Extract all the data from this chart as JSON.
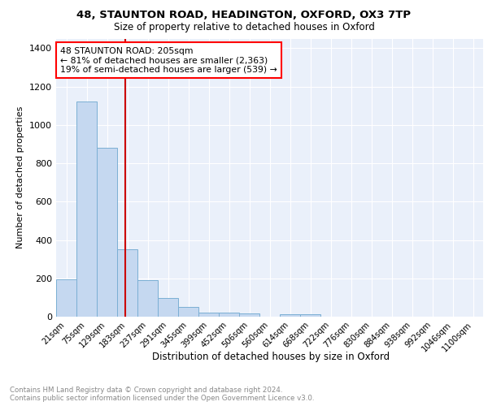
{
  "title_line1": "48, STAUNTON ROAD, HEADINGTON, OXFORD, OX3 7TP",
  "title_line2": "Size of property relative to detached houses in Oxford",
  "xlabel": "Distribution of detached houses by size in Oxford",
  "ylabel": "Number of detached properties",
  "bar_labels": [
    "21sqm",
    "75sqm",
    "129sqm",
    "183sqm",
    "237sqm",
    "291sqm",
    "345sqm",
    "399sqm",
    "452sqm",
    "506sqm",
    "560sqm",
    "614sqm",
    "668sqm",
    "722sqm",
    "776sqm",
    "830sqm",
    "884sqm",
    "938sqm",
    "992sqm",
    "1046sqm",
    "1100sqm"
  ],
  "bar_heights": [
    196,
    1120,
    880,
    350,
    192,
    96,
    50,
    22,
    20,
    15,
    0,
    12,
    12,
    0,
    0,
    0,
    0,
    0,
    0,
    0,
    0
  ],
  "bar_color": "#c5d8f0",
  "bar_edge_color": "#7bafd4",
  "property_line_x": 205,
  "bin_edges": [
    21,
    75,
    129,
    183,
    237,
    291,
    345,
    399,
    452,
    506,
    560,
    614,
    668,
    722,
    776,
    830,
    884,
    938,
    992,
    1046,
    1100
  ],
  "ylim": [
    0,
    1450
  ],
  "annotation_text": "48 STAUNTON ROAD: 205sqm\n← 81% of detached houses are smaller (2,363)\n19% of semi-detached houses are larger (539) →",
  "annotation_box_color": "white",
  "annotation_box_edge_color": "red",
  "red_line_color": "#cc0000",
  "footnote": "Contains HM Land Registry data © Crown copyright and database right 2024.\nContains public sector information licensed under the Open Government Licence v3.0.",
  "background_color": "#eaf0fa",
  "grid_color": "#ffffff",
  "yticks": [
    0,
    200,
    400,
    600,
    800,
    1000,
    1200,
    1400
  ]
}
